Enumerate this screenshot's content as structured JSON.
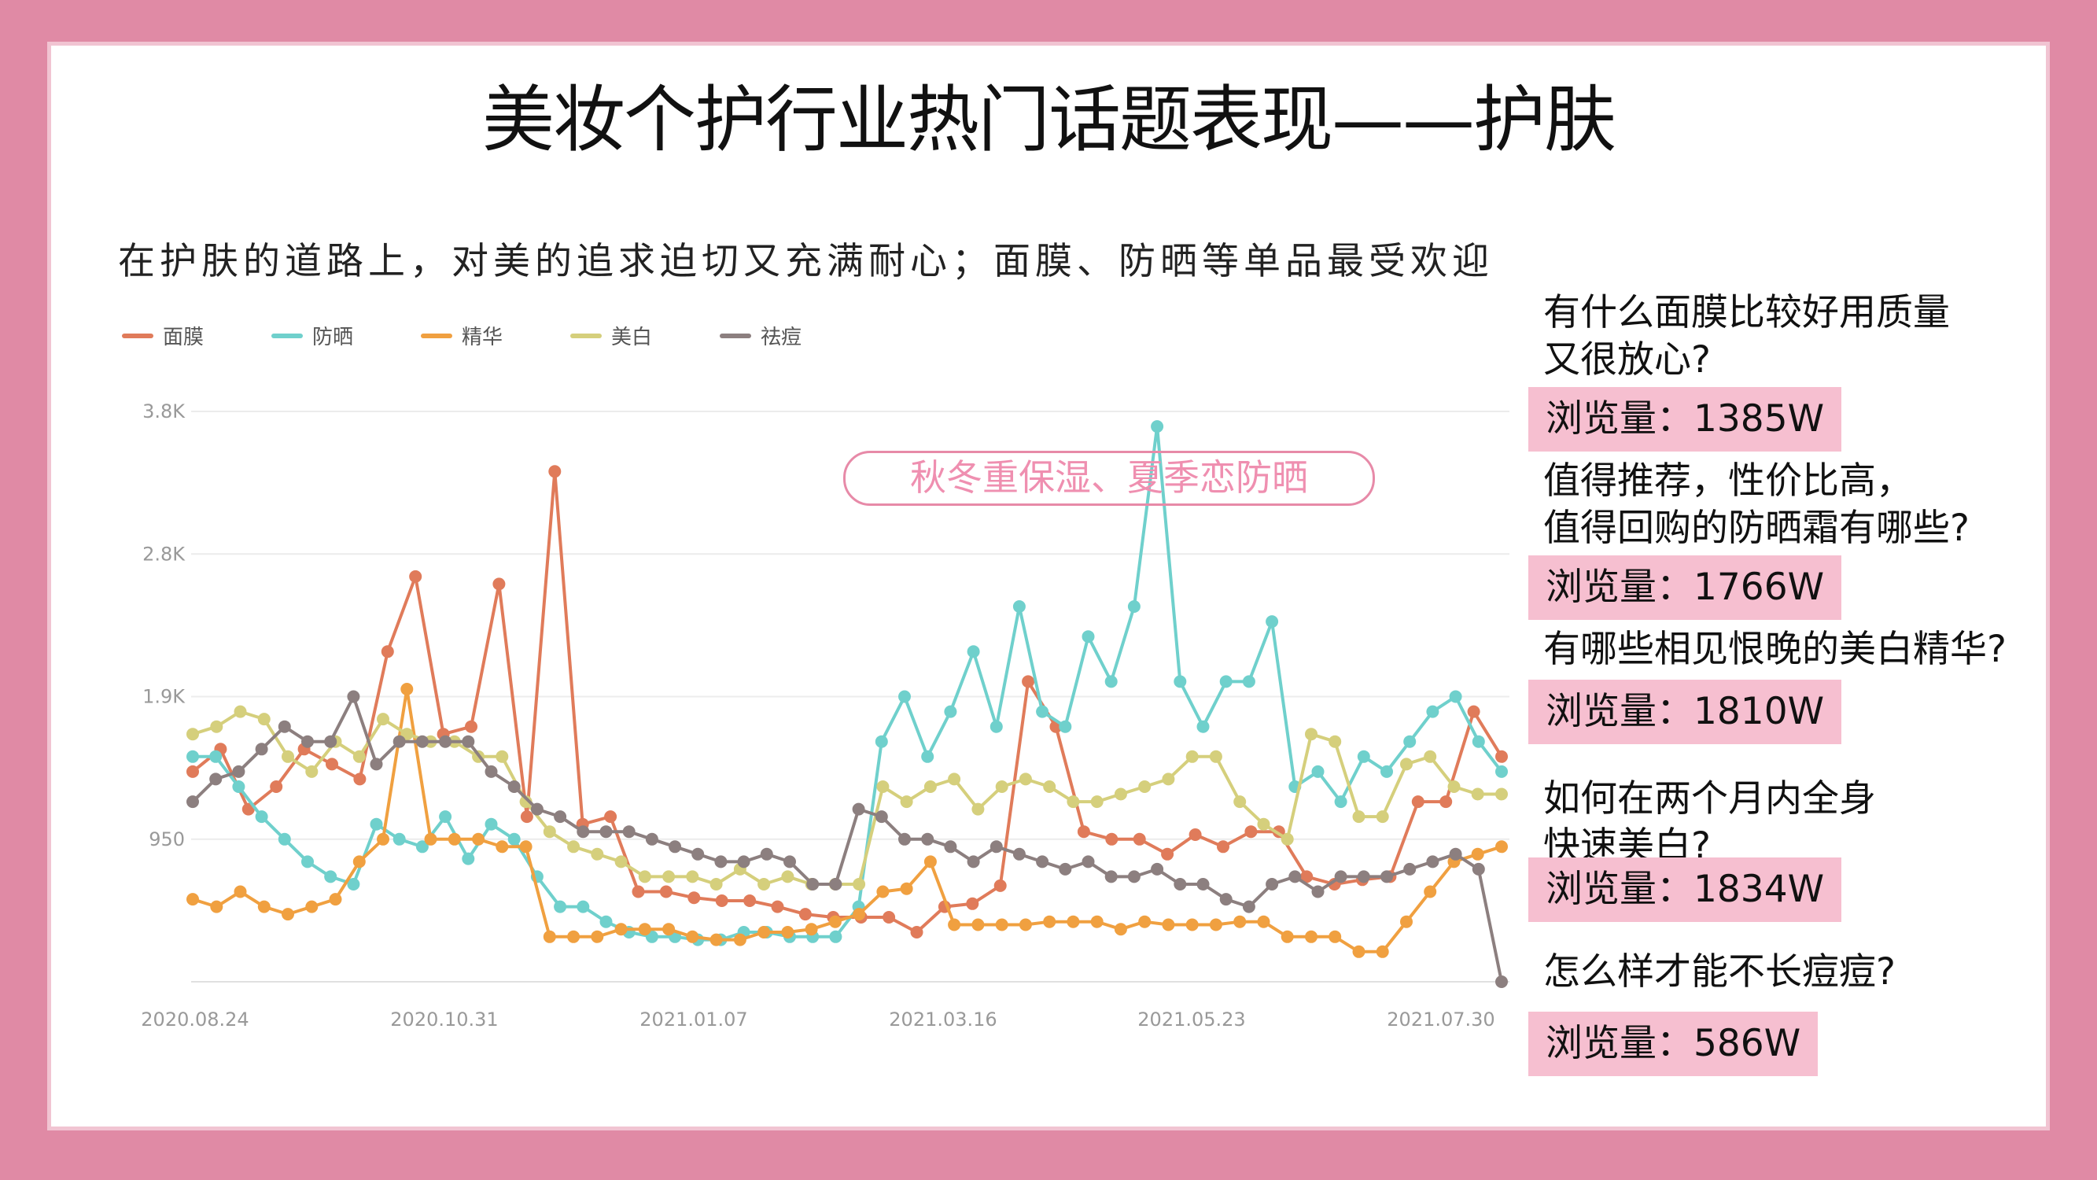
{
  "title": "美妆个护行业热门话题表现——护肤",
  "subtitle": "在护肤的道路上，对美的追求迫切又充满耐心；面膜、防晒等单品最受欢迎",
  "annotation": "秋冬重保湿、夏季恋防晒",
  "qa": [
    {
      "question": "有什么面膜比较好用质量\n又很放心?",
      "views": "浏览量：1385W"
    },
    {
      "question": "值得推荐，性价比高，\n值得回购的防晒霜有哪些?",
      "views": "浏览量：1766W"
    },
    {
      "question": "有哪些相见恨晚的美白精华?",
      "views": "浏览量：1810W"
    },
    {
      "question": "如何在两个月内全身\n快速美白?",
      "views": "浏览量：1834W"
    },
    {
      "question": "怎么样才能不长痘痘?",
      "views": "浏览量：586W"
    }
  ],
  "colors": {
    "面膜": "#e07b5a",
    "防晒": "#6fd0cc",
    "精华": "#f0a040",
    "美白": "#d5cf7c",
    "祛痘": "#8c7f7f"
  },
  "chart_data": {
    "type": "line",
    "x_ticks": [
      "2020.08.24",
      "2020.10.31",
      "2021.01.07",
      "2021.03.16",
      "2021.05.23",
      "2021.07.30"
    ],
    "y_ticks": [
      "3.8K",
      "2.8K",
      "1.9K",
      "950"
    ],
    "ylim": [
      0,
      3800
    ],
    "x_range": [
      "2020.08.24",
      "2021.08.14"
    ],
    "series": [
      {
        "name": "面膜",
        "color": "#e07b5a",
        "values": [
          1400,
          1550,
          1150,
          1300,
          1550,
          1450,
          1350,
          2200,
          2700,
          1650,
          1700,
          2650,
          1100,
          3400,
          1050,
          1100,
          600,
          600,
          560,
          540,
          540,
          500,
          450,
          430,
          430,
          430,
          330,
          500,
          520,
          640,
          2000,
          1700,
          1000,
          950,
          950,
          850,
          980,
          900,
          1000,
          1000,
          700,
          650,
          680,
          700,
          1200,
          1200,
          1800,
          1500
        ]
      },
      {
        "name": "防晒",
        "color": "#6fd0cc",
        "values": [
          1500,
          1500,
          1300,
          1100,
          950,
          800,
          700,
          650,
          1050,
          950,
          900,
          1100,
          820,
          1050,
          950,
          700,
          500,
          500,
          400,
          330,
          300,
          300,
          280,
          280,
          330,
          330,
          300,
          300,
          300,
          500,
          1600,
          1900,
          1500,
          1800,
          2200,
          1700,
          2500,
          1800,
          1700,
          2300,
          2000,
          2500,
          3700,
          2000,
          1700,
          2000,
          2000,
          2400,
          1300,
          1400,
          1200,
          1500,
          1400,
          1600,
          1800,
          1900,
          1600,
          1400
        ]
      },
      {
        "name": "精华",
        "color": "#f0a040",
        "values": [
          550,
          500,
          600,
          500,
          450,
          500,
          550,
          800,
          950,
          1950,
          950,
          950,
          950,
          900,
          900,
          300,
          300,
          300,
          350,
          350,
          350,
          300,
          280,
          280,
          330,
          330,
          350,
          400,
          450,
          600,
          620,
          800,
          380,
          380,
          380,
          380,
          400,
          400,
          400,
          350,
          400,
          380,
          380,
          380,
          400,
          400,
          300,
          300,
          300,
          200,
          200,
          400,
          600,
          800,
          850,
          900
        ]
      },
      {
        "name": "美白",
        "color": "#d5cf7c",
        "values": [
          1650,
          1700,
          1800,
          1750,
          1500,
          1400,
          1600,
          1500,
          1750,
          1650,
          1600,
          1600,
          1500,
          1500,
          1200,
          1000,
          900,
          850,
          800,
          700,
          700,
          700,
          650,
          750,
          650,
          700,
          650,
          650,
          650,
          1300,
          1200,
          1300,
          1350,
          1150,
          1300,
          1350,
          1300,
          1200,
          1200,
          1250,
          1300,
          1350,
          1500,
          1500,
          1200,
          1050,
          950,
          1650,
          1600,
          1100,
          1100,
          1450,
          1500,
          1300,
          1250,
          1250
        ]
      },
      {
        "name": "祛痘",
        "color": "#8c7f7f",
        "values": [
          1200,
          1350,
          1400,
          1550,
          1700,
          1600,
          1600,
          1900,
          1450,
          1600,
          1600,
          1600,
          1600,
          1400,
          1300,
          1150,
          1100,
          1000,
          1000,
          1000,
          950,
          900,
          850,
          800,
          800,
          850,
          800,
          650,
          650,
          1150,
          1100,
          950,
          950,
          900,
          800,
          900,
          850,
          800,
          750,
          800,
          700,
          700,
          750,
          650,
          650,
          550,
          500,
          650,
          700,
          600,
          700,
          700,
          700,
          750,
          800,
          850,
          750,
          0
        ]
      }
    ]
  }
}
